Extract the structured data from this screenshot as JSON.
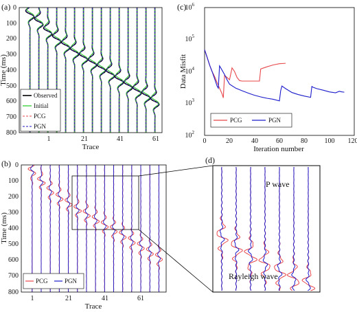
{
  "panels": {
    "a": {
      "label": "(a)",
      "xlabel": "Trace",
      "ylabel": "Time (ms)",
      "xticks": [
        "1",
        "21",
        "41",
        "61"
      ],
      "yticks": [
        "0",
        "100",
        "200",
        "300",
        "400",
        "500",
        "600",
        "700",
        "800"
      ],
      "legend": [
        "Observed",
        "Initial",
        "PCG",
        "PGN"
      ],
      "colors": {
        "observed": "#000000",
        "initial": "#33cc33",
        "pcg": "#e8474b",
        "pgn": "#1a1acc"
      }
    },
    "b": {
      "label": "(b)",
      "xlabel": "Trace",
      "ylabel": "Time (ms)",
      "xticks": [
        "1",
        "21",
        "41",
        "61"
      ],
      "yticks": [
        "0",
        "100",
        "200",
        "300",
        "400",
        "500",
        "600",
        "700",
        "800"
      ],
      "legend": [
        "PCG",
        "PGN"
      ],
      "colors": {
        "pcg": "#e8474b",
        "pgn": "#1a1acc"
      }
    },
    "c": {
      "label": "(c)",
      "xlabel": "Iteration number",
      "ylabel": "Data Misfit",
      "xticks": [
        "0",
        "20",
        "40",
        "60",
        "80",
        "100",
        "120"
      ],
      "ytick_mantissa": "10",
      "ytick_exponents": [
        "2",
        "3",
        "4",
        "5",
        "6"
      ],
      "legend": [
        "PCG",
        "PGN"
      ]
    },
    "d": {
      "label": "(d)",
      "annotations": [
        "P wave",
        "Rayleigh wave"
      ]
    }
  },
  "chart_data": [
    {
      "type": "line",
      "panel": "a",
      "title": "",
      "xlabel": "Trace",
      "ylabel": "Time (ms)",
      "xlim": [
        -5,
        75
      ],
      "ylim": [
        800,
        0
      ],
      "trace_positions": [
        1,
        6,
        11,
        16,
        21,
        26,
        31,
        36,
        41,
        46,
        51,
        56,
        61,
        66,
        71
      ],
      "event_arrival_ms": [
        40,
        90,
        150,
        200,
        240,
        280,
        315,
        350,
        385,
        420,
        460,
        495,
        530,
        560,
        600
      ],
      "series": [
        {
          "name": "Observed"
        },
        {
          "name": "Initial"
        },
        {
          "name": "PCG"
        },
        {
          "name": "PGN"
        }
      ]
    },
    {
      "type": "line",
      "panel": "b",
      "title": "",
      "xlabel": "Trace",
      "ylabel": "Time (ms)",
      "xlim": [
        -5,
        75
      ],
      "ylim": [
        800,
        0
      ],
      "trace_positions": [
        1,
        6,
        11,
        16,
        21,
        26,
        31,
        36,
        41,
        46,
        51,
        56,
        61,
        66,
        71
      ],
      "event_arrival_ms": [
        40,
        100,
        160,
        200,
        235,
        275,
        305,
        340,
        375,
        405,
        440,
        475,
        510,
        545,
        580
      ],
      "series": [
        {
          "name": "PCG"
        },
        {
          "name": "PGN"
        }
      ]
    },
    {
      "type": "line",
      "panel": "c",
      "title": "",
      "xlabel": "Iteration number",
      "ylabel": "Data Misfit",
      "xlim": [
        0,
        120
      ],
      "ylim": [
        100,
        1000000
      ],
      "yscale": "log",
      "grid": false,
      "legend_position": "bottom-left",
      "series": [
        {
          "name": "PCG",
          "color": "#e8474b",
          "x": [
            0,
            2,
            4,
            6,
            8,
            10,
            12,
            14,
            15,
            16,
            18,
            20,
            22,
            24,
            26,
            28,
            30,
            32,
            34,
            36,
            38,
            40,
            42,
            44,
            45,
            50,
            55,
            60,
            65
          ],
          "y": [
            48000,
            28000,
            16000,
            10000,
            7000,
            4500,
            3000,
            2000,
            1500,
            7500,
            6500,
            5500,
            13000,
            10000,
            6500,
            5200,
            5000,
            5000,
            5000,
            5000,
            5000,
            5000,
            5000,
            5000,
            12000,
            14000,
            16000,
            17500,
            18000
          ]
        },
        {
          "name": "PGN",
          "color": "#1a1acc",
          "x": [
            0,
            2,
            4,
            6,
            8,
            10,
            11,
            12,
            14,
            16,
            18,
            20,
            25,
            30,
            35,
            40,
            45,
            50,
            55,
            60,
            61,
            62,
            65,
            70,
            75,
            80,
            85,
            86,
            87,
            90,
            95,
            100,
            105,
            108,
            110,
            112
          ],
          "y": [
            48000,
            28000,
            16000,
            10000,
            6000,
            3500,
            3000,
            15000,
            11000,
            8000,
            5500,
            4000,
            3000,
            2500,
            2100,
            1800,
            1600,
            1450,
            1350,
            1200,
            2500,
            3500,
            2900,
            2200,
            1900,
            1700,
            1550,
            3400,
            3200,
            2900,
            2600,
            2300,
            2150,
            2400,
            2300,
            2250
          ]
        }
      ]
    }
  ]
}
